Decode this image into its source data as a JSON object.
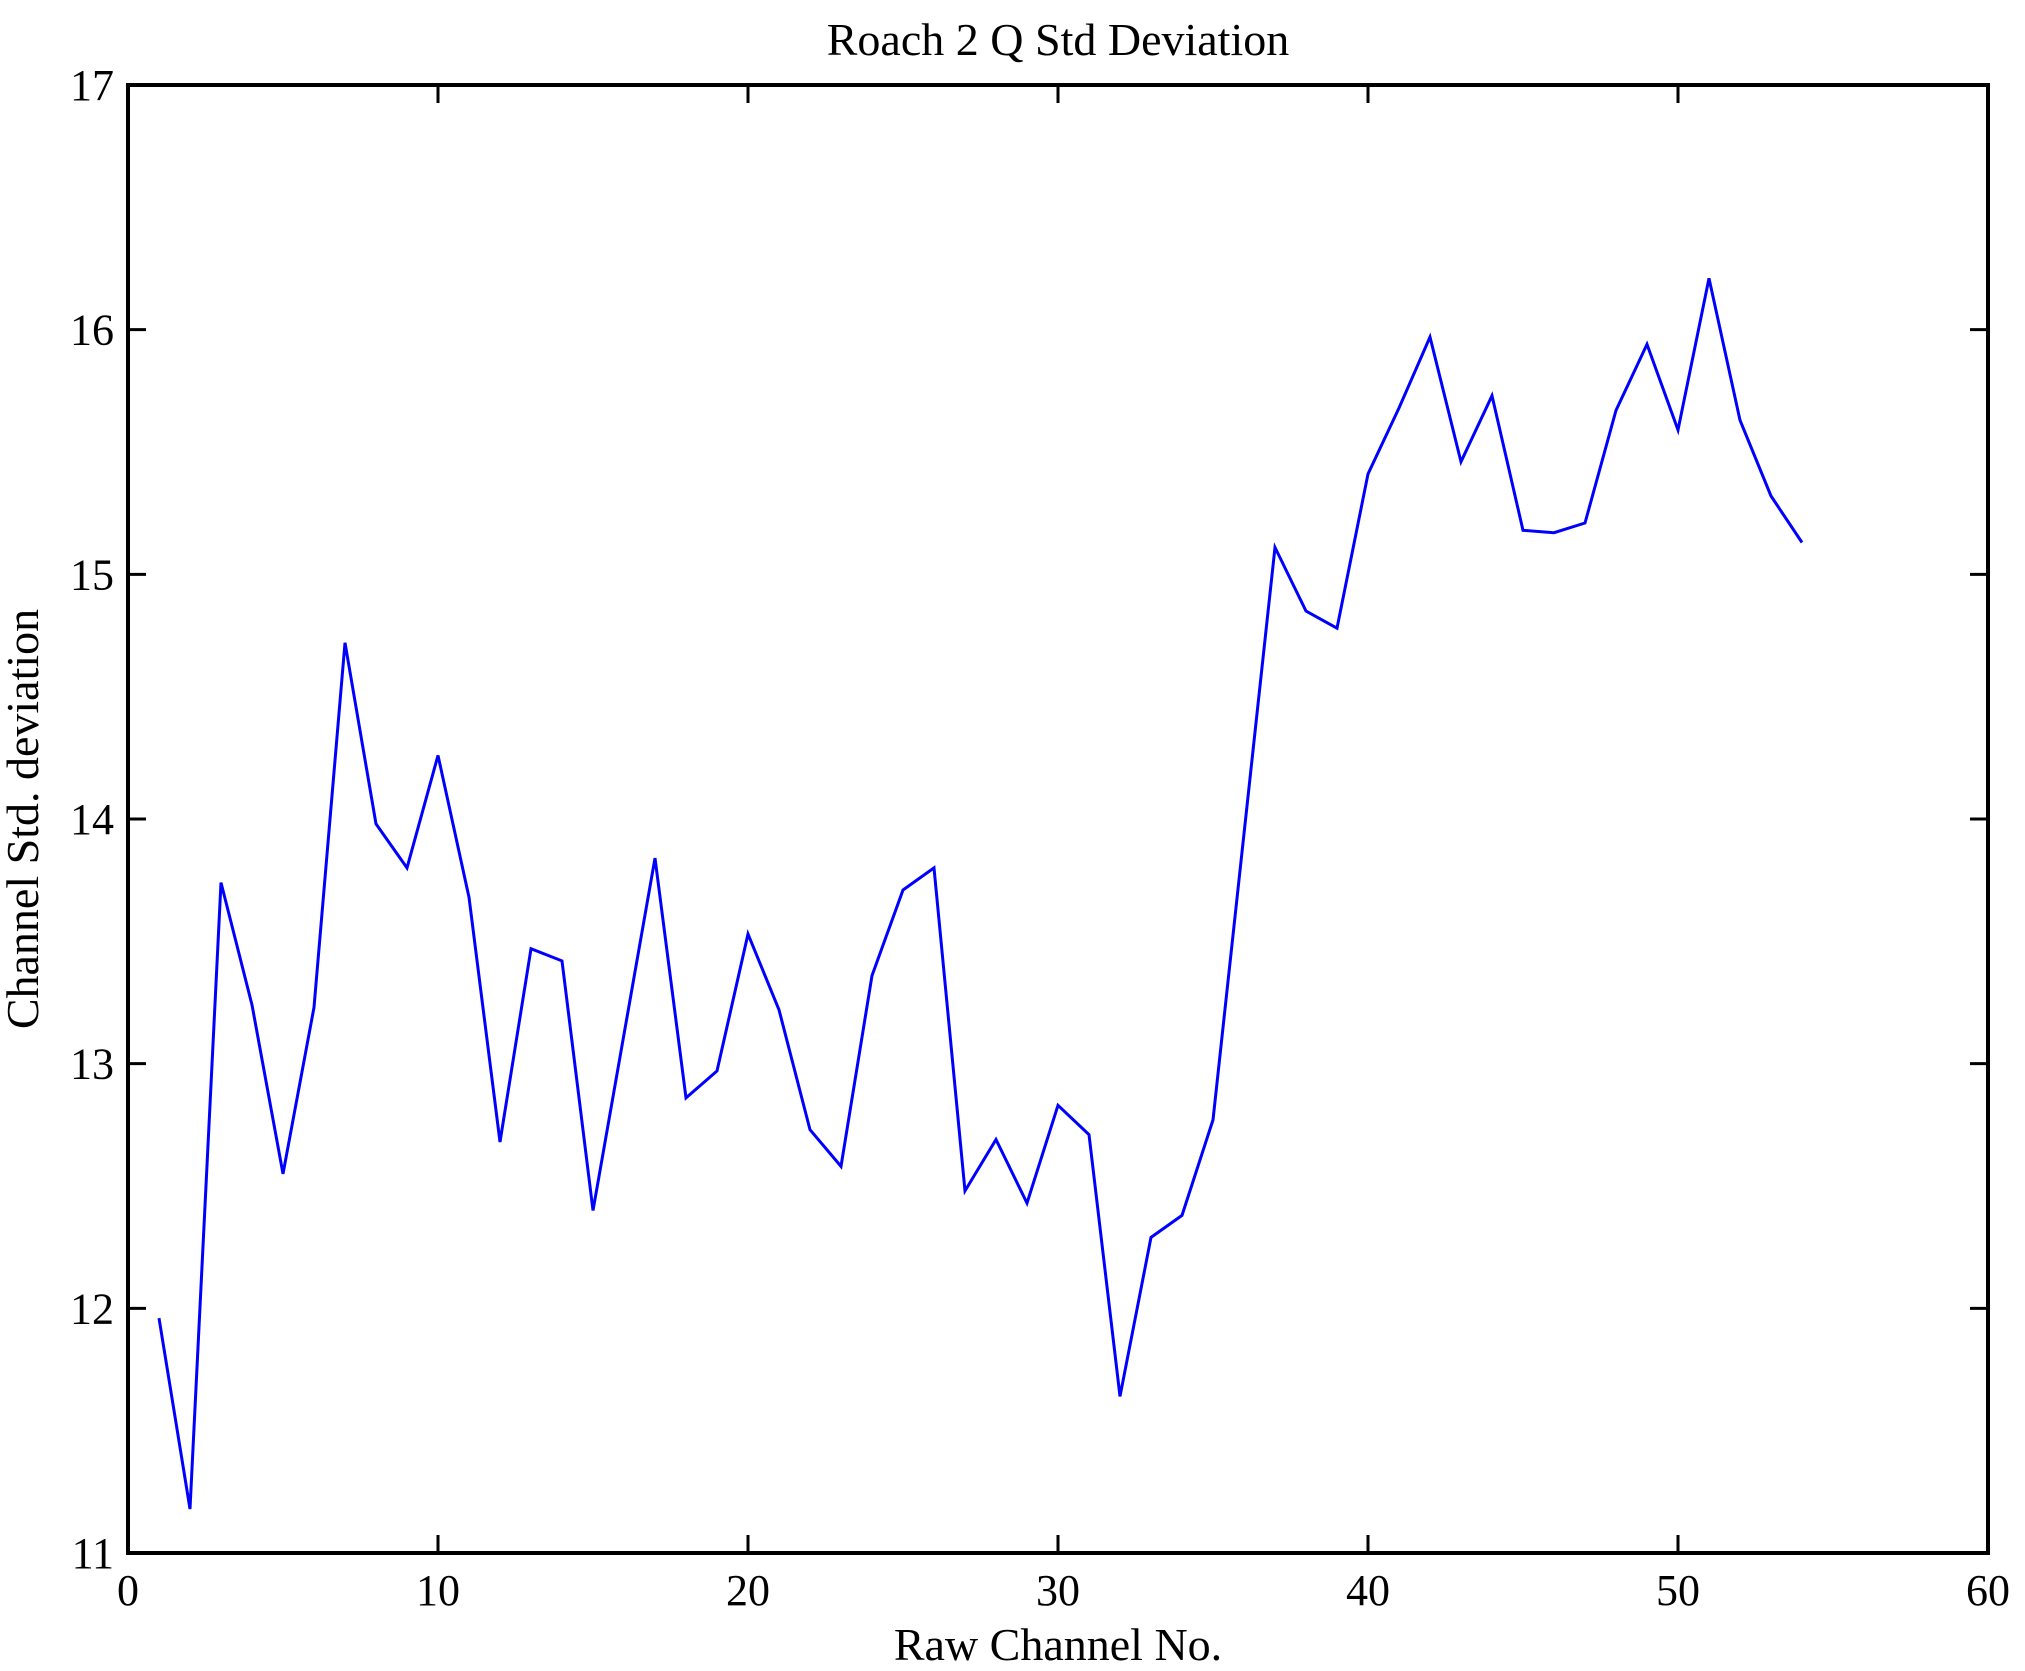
{
  "title": "Roach 2 Q Std Deviation",
  "chart_data": {
    "type": "line",
    "title": "Roach 2 Q Std Deviation",
    "xlabel": "Raw Channel No.",
    "ylabel": "Channel Std. deviation",
    "xlim": [
      0,
      60
    ],
    "ylim": [
      11,
      17
    ],
    "x_ticks": [
      0,
      10,
      20,
      30,
      40,
      50,
      60
    ],
    "y_ticks": [
      11,
      12,
      13,
      14,
      15,
      16,
      17
    ],
    "grid": false,
    "legend_position": "none",
    "line_color": "#0000ff",
    "axis_color": "#000000",
    "background_color": "#ffffff",
    "series": [
      {
        "name": "Q std deviation",
        "x": [
          1,
          2,
          3,
          4,
          5,
          6,
          7,
          8,
          9,
          10,
          11,
          12,
          13,
          14,
          15,
          16,
          17,
          18,
          19,
          20,
          21,
          22,
          23,
          24,
          25,
          26,
          27,
          28,
          29,
          30,
          31,
          32,
          33,
          34,
          35,
          36,
          37,
          38,
          39,
          40,
          41,
          42,
          43,
          44,
          45,
          46,
          47,
          48,
          49,
          50,
          51,
          52,
          53,
          54
        ],
        "y": [
          11.96,
          11.18,
          13.74,
          13.24,
          12.55,
          13.23,
          14.72,
          13.98,
          13.8,
          14.26,
          13.68,
          12.68,
          13.47,
          13.42,
          12.4,
          13.12,
          13.84,
          12.86,
          12.97,
          13.53,
          13.22,
          12.73,
          12.58,
          13.36,
          13.71,
          13.8,
          12.48,
          12.69,
          12.43,
          12.83,
          12.71,
          11.64,
          12.29,
          12.38,
          12.77,
          13.94,
          15.11,
          14.85,
          14.78,
          15.41,
          15.68,
          15.97,
          15.46,
          15.73,
          15.18,
          15.17,
          15.21,
          15.67,
          15.94,
          15.59,
          16.21,
          15.63,
          15.32,
          15.13
        ]
      }
    ]
  }
}
